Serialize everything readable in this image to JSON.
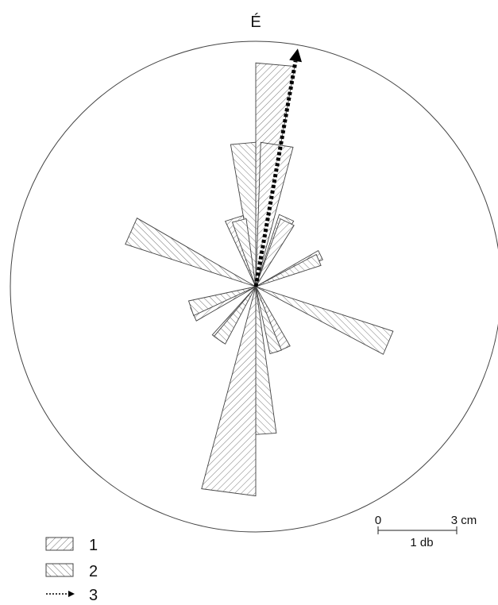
{
  "chart_data": {
    "type": "rose",
    "north_label": "É",
    "unit_circle_radius_cm": 6.8,
    "classes": [
      {
        "id": "1",
        "label": "1",
        "hatch": "forward"
      },
      {
        "id": "2",
        "label": "2",
        "hatch": "backward"
      }
    ],
    "petals": [
      {
        "class": "1",
        "dir_from": 0,
        "dir_to": 10,
        "length_cm": 6.2
      },
      {
        "class": "1",
        "dir_from": 2,
        "dir_to": 15,
        "length_cm": 4.0
      },
      {
        "class": "2",
        "dir_from": 350,
        "dir_to": 360,
        "length_cm": 4.0
      },
      {
        "class": "2",
        "dir_from": 18,
        "dir_to": 30,
        "length_cm": 2.1
      },
      {
        "class": "1",
        "dir_from": 20,
        "dir_to": 32,
        "length_cm": 2.0
      },
      {
        "class": "1",
        "dir_from": 335,
        "dir_to": 350,
        "length_cm": 2.0
      },
      {
        "class": "2",
        "dir_from": 340,
        "dir_to": 352,
        "length_cm": 1.9
      },
      {
        "class": "1",
        "dir_from": 60,
        "dir_to": 68,
        "length_cm": 2.0
      },
      {
        "class": "2",
        "dir_from": 62,
        "dir_to": 72,
        "length_cm": 1.9
      },
      {
        "class": "2",
        "dir_from": 288,
        "dir_to": 300,
        "length_cm": 3.8
      },
      {
        "class": "2",
        "dir_from": 108,
        "dir_to": 118,
        "length_cm": 4.0
      },
      {
        "class": "1",
        "dir_from": 240,
        "dir_to": 252,
        "length_cm": 1.9
      },
      {
        "class": "2",
        "dir_from": 245,
        "dir_to": 258,
        "length_cm": 1.9
      },
      {
        "class": "1",
        "dir_from": 210,
        "dir_to": 222,
        "length_cm": 1.8
      },
      {
        "class": "2",
        "dir_from": 208,
        "dir_to": 220,
        "length_cm": 1.8
      },
      {
        "class": "1",
        "dir_from": 150,
        "dir_to": 162,
        "length_cm": 1.9
      },
      {
        "class": "2",
        "dir_from": 158,
        "dir_to": 168,
        "length_cm": 1.9
      },
      {
        "class": "2",
        "dir_from": 172,
        "dir_to": 180,
        "length_cm": 4.1
      },
      {
        "class": "1",
        "dir_from": 180,
        "dir_to": 195,
        "length_cm": 5.8
      }
    ],
    "mean_direction": {
      "azimuth": 10,
      "length_cm": 6.7
    },
    "scale_bar": {
      "value_cm": 3,
      "start_label": "0",
      "end_label": "3 cm",
      "unit_label": "1 db"
    },
    "legend": [
      {
        "symbol": "hatch-forward",
        "label": "1"
      },
      {
        "symbol": "hatch-backward",
        "label": "2"
      },
      {
        "symbol": "dotted-arrow",
        "label": "3"
      }
    ]
  }
}
